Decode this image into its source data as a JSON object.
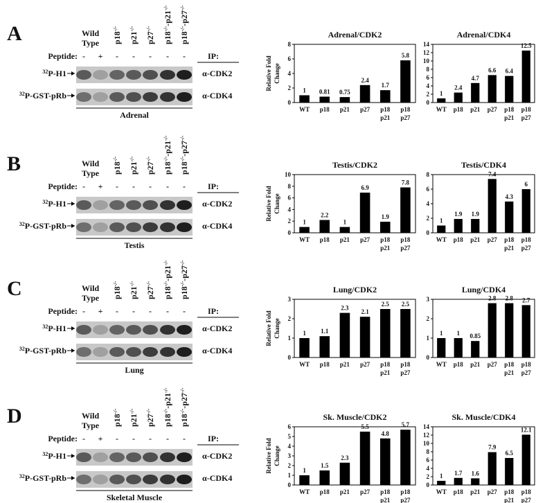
{
  "blots": [
    {
      "letter": "A",
      "wild_type": [
        "Wild",
        "Type"
      ],
      "genotypes": [
        [
          "p18",
          "-/-"
        ],
        [
          "p21",
          "-/-"
        ],
        [
          "p27",
          "-/-"
        ],
        [
          "p18",
          "-/-",
          "-p21",
          "-/-"
        ],
        [
          "p18",
          "-/-",
          "-p27",
          "-/-"
        ]
      ],
      "peptide_label": "Peptide:",
      "peptide": [
        "-",
        "+",
        "-",
        "-",
        "-",
        "-",
        "-"
      ],
      "ip_label": "IP:",
      "rows": [
        {
          "label": [
            "32",
            "P-H1"
          ],
          "antibody": "α-CDK2"
        },
        {
          "label": [
            "32",
            "P-GST-pRb"
          ],
          "antibody": "α-CDK4"
        }
      ],
      "tissue": "Adrenal"
    },
    {
      "letter": "B",
      "wild_type": [
        "Wild",
        "Type"
      ],
      "genotypes": [
        [
          "p18",
          "-/-"
        ],
        [
          "p21",
          "-/-"
        ],
        [
          "p27",
          "-/-"
        ],
        [
          "p18",
          "-/-",
          "-p21",
          "-/-"
        ],
        [
          "p18",
          "-/-",
          "-p27",
          "-/-"
        ]
      ],
      "peptide_label": "Peptide:",
      "peptide": [
        "-",
        "+",
        "-",
        "-",
        "-",
        "-",
        "-"
      ],
      "ip_label": "IP:",
      "rows": [
        {
          "label": [
            "32",
            "P-H1"
          ],
          "antibody": "α-CDK2"
        },
        {
          "label": [
            "32",
            "P-GST-pRb"
          ],
          "antibody": "α-CDK4"
        }
      ],
      "tissue": "Testis"
    },
    {
      "letter": "C",
      "wild_type": [
        "Wild",
        "Type"
      ],
      "genotypes": [
        [
          "p18",
          "-/-"
        ],
        [
          "p21",
          "-/-"
        ],
        [
          "p27",
          "-/-"
        ],
        [
          "p18",
          "-/-",
          "-p21",
          "-/-"
        ],
        [
          "p18",
          "-/-",
          "-p27",
          "-/-"
        ]
      ],
      "peptide_label": "Peptide:",
      "peptide": [
        "-",
        "+",
        "-",
        "-",
        "-",
        "-",
        "-"
      ],
      "ip_label": "IP:",
      "rows": [
        {
          "label": [
            "32",
            "P-H1"
          ],
          "antibody": "α-CDK2"
        },
        {
          "label": [
            "32",
            "P-GST-pRb"
          ],
          "antibody": "α-CDK4"
        }
      ],
      "tissue": "Lung"
    },
    {
      "letter": "D",
      "wild_type": [
        "Wild",
        "Type"
      ],
      "genotypes": [
        [
          "p18",
          "-/-"
        ],
        [
          "p21",
          "-/-"
        ],
        [
          "p27",
          "-/-"
        ],
        [
          "p18",
          "-/-",
          "-p21",
          "-/-"
        ],
        [
          "p18",
          "-/-",
          "-p27",
          "-/-"
        ]
      ],
      "peptide_label": "Peptide:",
      "peptide": [
        "-",
        "+",
        "-",
        "-",
        "-",
        "-",
        "-"
      ],
      "ip_label": "IP:",
      "rows": [
        {
          "label": [
            "32",
            "P-H1"
          ],
          "antibody": "α-CDK2"
        },
        {
          "label": [
            "32",
            "P-GST-pRb"
          ],
          "antibody": "α-CDK4"
        }
      ],
      "tissue": "Skeletal Muscle"
    }
  ],
  "chart_data": [
    {
      "type": "bar",
      "title": "Adrenal/CDK2",
      "ylabel": [
        "Relative Fold",
        "Change"
      ],
      "categories": [
        [
          "WT"
        ],
        [
          "p18"
        ],
        [
          "p21"
        ],
        [
          "p27"
        ],
        [
          "p18",
          "p21"
        ],
        [
          "p18",
          "p27"
        ]
      ],
      "values": [
        1,
        0.81,
        0.75,
        2.4,
        1.7,
        5.8
      ],
      "color": "#000000",
      "ylim": [
        0,
        8
      ],
      "yticks": [
        0,
        2,
        4,
        6,
        8
      ]
    },
    {
      "type": "bar",
      "title": "Adrenal/CDK4",
      "categories": [
        [
          "WT"
        ],
        [
          "p18"
        ],
        [
          "p21"
        ],
        [
          "p27"
        ],
        [
          "p18",
          "p21"
        ],
        [
          "p18",
          "p27"
        ]
      ],
      "values": [
        1,
        2.4,
        4.7,
        6.6,
        6.4,
        12.5
      ],
      "color": "#000000",
      "ylim": [
        0,
        14
      ],
      "yticks": [
        0,
        2,
        4,
        6,
        8,
        10,
        12,
        14
      ]
    },
    {
      "type": "bar",
      "title": "Testis/CDK2",
      "ylabel": [
        "Relative Fold",
        "Change"
      ],
      "categories": [
        [
          "WT"
        ],
        [
          "p18"
        ],
        [
          "p21"
        ],
        [
          "p27"
        ],
        [
          "p18",
          "p21"
        ],
        [
          "p18",
          "p27"
        ]
      ],
      "values": [
        1,
        2.2,
        1,
        6.9,
        1.9,
        7.8
      ],
      "color": "#000000",
      "ylim": [
        0,
        10
      ],
      "yticks": [
        0,
        2,
        4,
        6,
        8,
        10
      ]
    },
    {
      "type": "bar",
      "title": "Testis/CDK4",
      "categories": [
        [
          "WT"
        ],
        [
          "p18"
        ],
        [
          "p21"
        ],
        [
          "p27"
        ],
        [
          "p18",
          "p21"
        ],
        [
          "p18",
          "p27"
        ]
      ],
      "values": [
        1,
        1.9,
        1.9,
        7.4,
        4.3,
        6
      ],
      "color": "#000000",
      "ylim": [
        0,
        8
      ],
      "yticks": [
        0,
        2,
        4,
        6,
        8
      ]
    },
    {
      "type": "bar",
      "title": "Lung/CDK2",
      "ylabel": [
        "Relative Fold",
        "Change"
      ],
      "categories": [
        [
          "WT"
        ],
        [
          "p18"
        ],
        [
          "p21"
        ],
        [
          "p27"
        ],
        [
          "p18",
          "p21"
        ],
        [
          "p18",
          "p27"
        ]
      ],
      "values": [
        1,
        1.1,
        2.3,
        2.1,
        2.5,
        2.5
      ],
      "color": "#000000",
      "ylim": [
        0,
        3
      ],
      "yticks": [
        0,
        1,
        2,
        3
      ]
    },
    {
      "type": "bar",
      "title": "Lung/CDK4",
      "categories": [
        [
          "WT"
        ],
        [
          "p18"
        ],
        [
          "p21"
        ],
        [
          "p27"
        ],
        [
          "p18",
          "p21"
        ],
        [
          "p18",
          "p27"
        ]
      ],
      "values": [
        1,
        1,
        0.85,
        2.8,
        2.8,
        2.7
      ],
      "color": "#000000",
      "ylim": [
        0,
        3
      ],
      "yticks": [
        0,
        1,
        2,
        3
      ]
    },
    {
      "type": "bar",
      "title": "Sk. Muscle/CDK2",
      "ylabel": [
        "Relative Fold",
        "Change"
      ],
      "categories": [
        [
          "WT"
        ],
        [
          "p18"
        ],
        [
          "p21"
        ],
        [
          "p27"
        ],
        [
          "p18",
          "p21"
        ],
        [
          "p18",
          "p27"
        ]
      ],
      "values": [
        1,
        1.5,
        2.3,
        5.5,
        4.8,
        5.7
      ],
      "color": "#000000",
      "ylim": [
        0,
        6
      ],
      "yticks": [
        0,
        1,
        2,
        3,
        4,
        5,
        6
      ]
    },
    {
      "type": "bar",
      "title": "Sk. Muscle/CDK4",
      "categories": [
        [
          "WT"
        ],
        [
          "p18"
        ],
        [
          "p21"
        ],
        [
          "p27"
        ],
        [
          "p18",
          "p21"
        ],
        [
          "p18",
          "p27"
        ]
      ],
      "values": [
        1,
        1.7,
        1.6,
        7.9,
        6.5,
        12.1
      ],
      "color": "#000000",
      "ylim": [
        0,
        14
      ],
      "yticks": [
        0,
        2,
        4,
        6,
        8,
        10,
        12,
        14
      ]
    }
  ]
}
